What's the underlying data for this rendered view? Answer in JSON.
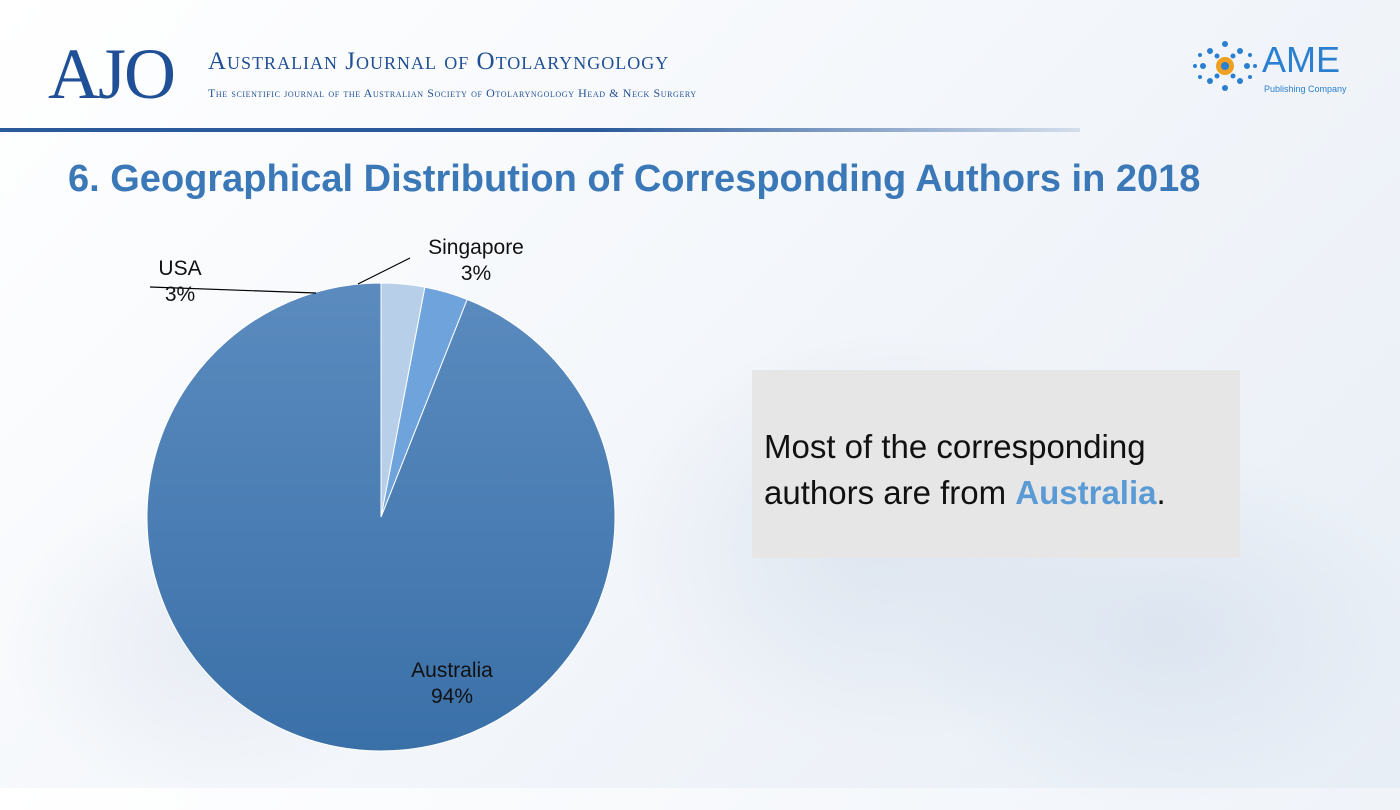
{
  "header": {
    "logo_text": "AJO",
    "journal_title": "Australian Journal of Otolaryngology",
    "journal_subtitle": "The scientific journal of the Australian Society of Otolaryngology Head & Neck Surgery",
    "publisher_logo_text": "AME",
    "publisher_subtitle": "Publishing Company"
  },
  "slide_title": "6. Geographical Distribution of Corresponding Authors in 2018",
  "chart_data": {
    "type": "pie",
    "slices": [
      {
        "label": "Australia",
        "value": 94,
        "value_label": "94%",
        "color": "#4a80b8"
      },
      {
        "label": "USA",
        "value": 3,
        "value_label": "3%",
        "color": "#6fa3dc"
      },
      {
        "label": "Singapore",
        "value": 3,
        "value_label": "3%",
        "color": "#b8cfea"
      }
    ],
    "start_angle_deg": 0,
    "direction": "counterclockwise"
  },
  "callout": {
    "text_before": "Most of the corresponding authors are from ",
    "highlight": "Australia",
    "text_after": ".",
    "highlight_color": "#5b9bd5"
  }
}
